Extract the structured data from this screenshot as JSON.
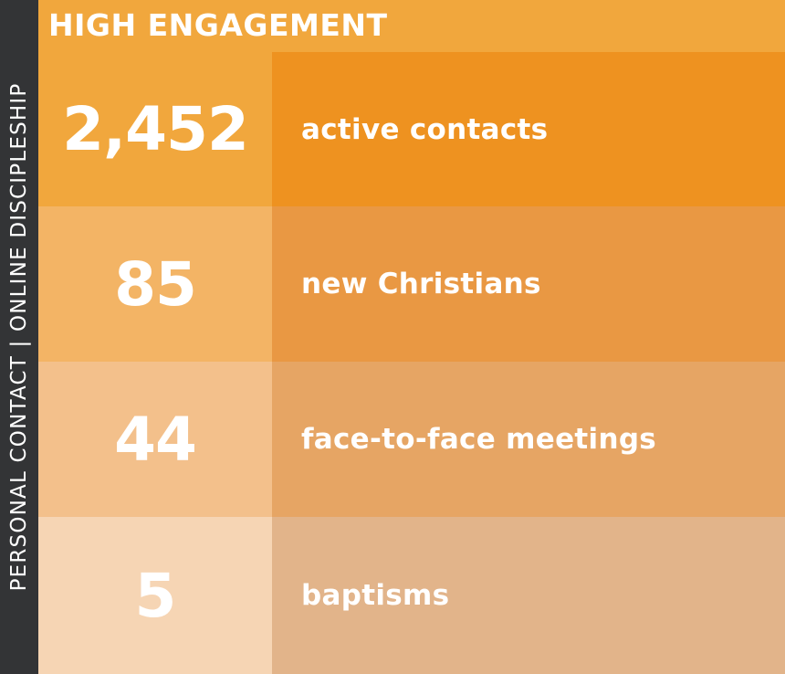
{
  "side_label": "PERSONAL CONTACT | ONLINE DISCIPLESHIP",
  "header": {
    "title": "HIGH ENGAGEMENT"
  },
  "colors": {
    "side_band": "#333436",
    "header": "#f1a73d",
    "number_cells": [
      "#f1a73d",
      "#f3b465",
      "#f3c08b",
      "#f6d5b4"
    ],
    "label_cells": [
      "#ee9220",
      "#e99843",
      "#e6a564",
      "#e2b48a"
    ],
    "text": "#ffffff"
  },
  "stats": [
    {
      "value": "2,452",
      "label": "active contacts"
    },
    {
      "value": "85",
      "label": "new Christians"
    },
    {
      "value": "44",
      "label": "face-to-face meetings"
    },
    {
      "value": "5",
      "label": "baptisms"
    }
  ]
}
